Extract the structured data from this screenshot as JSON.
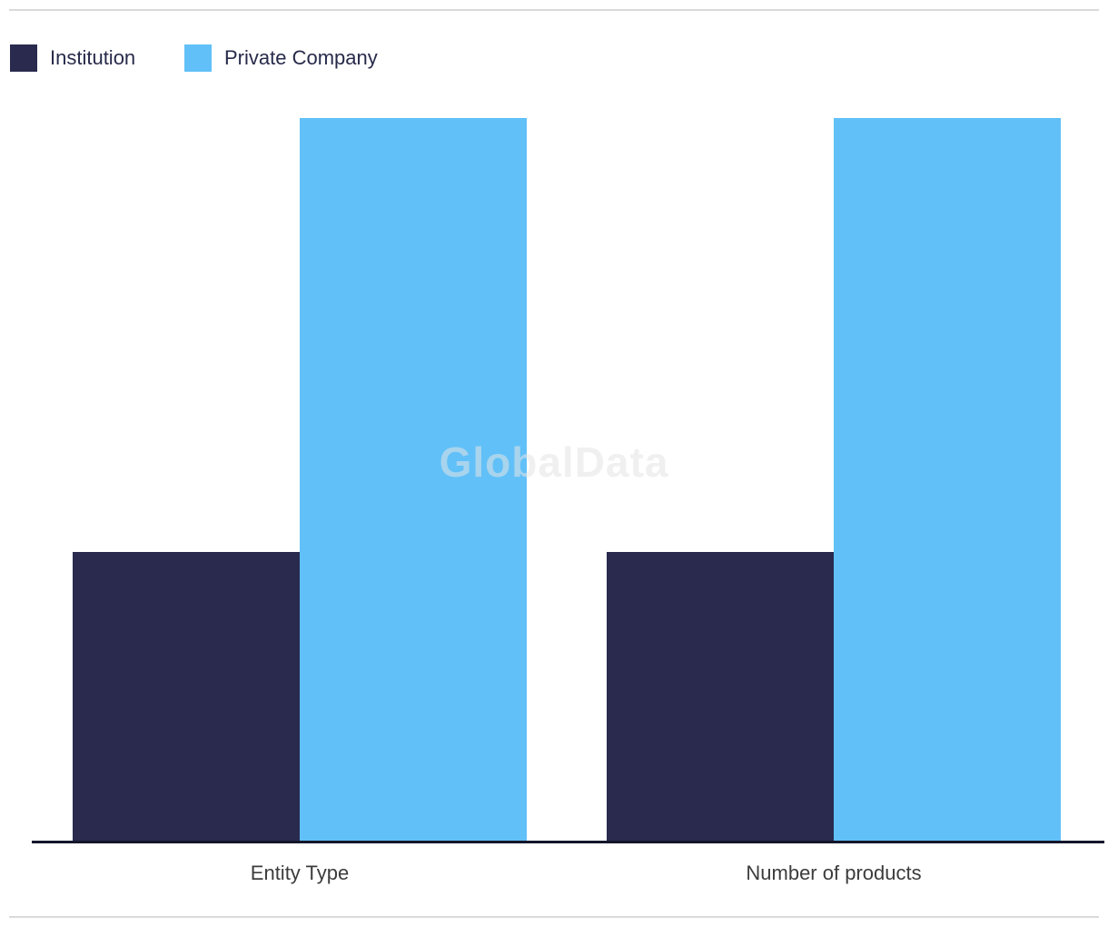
{
  "watermark": "GlobalData",
  "legend": {
    "items": [
      {
        "label": "Institution",
        "color": "#292A4E"
      },
      {
        "label": "Private Company",
        "color": "#61C0F8"
      }
    ]
  },
  "chart_data": {
    "type": "bar",
    "title": "",
    "xlabel": "",
    "ylabel": "",
    "categories": [
      "Entity Type",
      "Number of products"
    ],
    "series": [
      {
        "name": "Institution",
        "color": "#292A4E",
        "values": [
          2,
          2
        ]
      },
      {
        "name": "Private Company",
        "color": "#61C0F8",
        "values": [
          5,
          5
        ]
      }
    ],
    "ylim": [
      0,
      5
    ],
    "grid": false,
    "y_axis_visible": false,
    "value_labels_visible": false,
    "legend_position": "top-left",
    "axis_line_color": "#14162B",
    "note": "No y-axis or data labels are rendered; values are estimated from relative bar heights (ratio 2:5)."
  },
  "colors": {
    "background": "#FFFFFF",
    "divider": "#DADADA",
    "axis_line": "#14162B",
    "category_label_text": "#3C3C3C",
    "legend_text": "#272A4A",
    "watermark_text": "#E4E4E4"
  }
}
